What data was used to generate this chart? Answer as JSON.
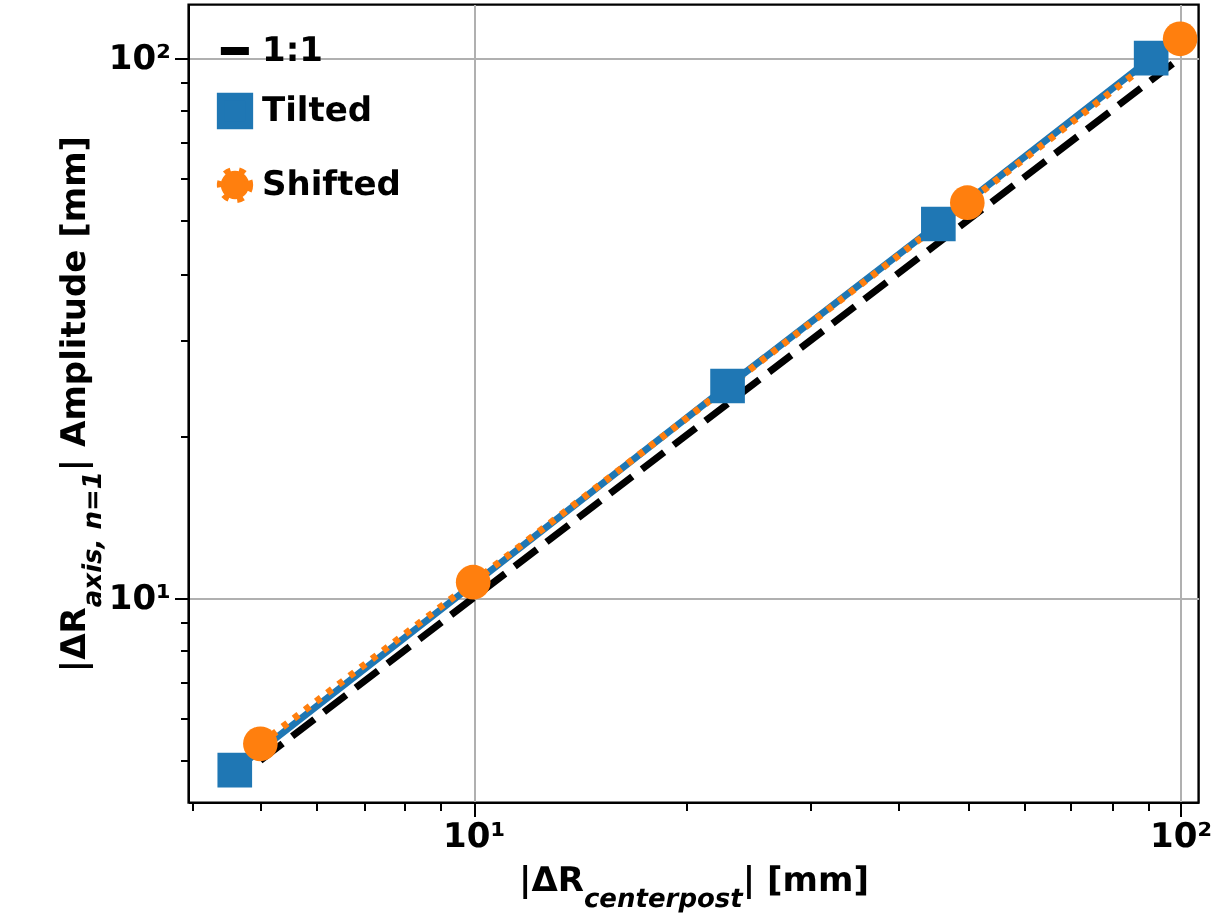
{
  "chart_data": {
    "type": "line",
    "xlabel": "|ΔR$_{centerpost}$| [mm]",
    "ylabel": "|ΔR$_{axis, n=1}$| Amplitude [mm]",
    "log": "xy",
    "grid": true,
    "legend": "top left",
    "xlim": [
      3.95,
      106
    ],
    "ylim": [
      4.19,
      126
    ],
    "xticks": [
      {
        "value": 4,
        "label": null
      },
      {
        "value": 5,
        "label": null
      },
      {
        "value": 6,
        "label": null
      },
      {
        "value": 7,
        "label": null
      },
      {
        "value": 8,
        "label": null
      },
      {
        "value": 9,
        "label": null
      },
      {
        "value": 10,
        "label": "10¹"
      },
      {
        "value": 20,
        "label": null
      },
      {
        "value": 30,
        "label": null
      },
      {
        "value": 40,
        "label": null
      },
      {
        "value": 50,
        "label": null
      },
      {
        "value": 60,
        "label": null
      },
      {
        "value": 70,
        "label": null
      },
      {
        "value": 80,
        "label": null
      },
      {
        "value": 90,
        "label": null
      },
      {
        "value": 100,
        "label": "10²"
      }
    ],
    "yticks": [
      {
        "value": 5,
        "label": null
      },
      {
        "value": 6,
        "label": null
      },
      {
        "value": 7,
        "label": null
      },
      {
        "value": 8,
        "label": null
      },
      {
        "value": 9,
        "label": null
      },
      {
        "value": 10,
        "label": "10¹"
      },
      {
        "value": 20,
        "label": null
      },
      {
        "value": 30,
        "label": null
      },
      {
        "value": 40,
        "label": null
      },
      {
        "value": 50,
        "label": null
      },
      {
        "value": 60,
        "label": null
      },
      {
        "value": 70,
        "label": null
      },
      {
        "value": 80,
        "label": null
      },
      {
        "value": 90,
        "label": null
      },
      {
        "value": 100,
        "label": "10²"
      }
    ],
    "series": [
      {
        "name": "1:1",
        "color": "#000000",
        "line_style": "dashed",
        "marker": "none",
        "x": [
          5,
          100
        ],
        "values": [
          5,
          100
        ]
      },
      {
        "name": "Tilted",
        "color": "#1f77b4",
        "line_style": "solid",
        "marker": "square",
        "x": [
          4.6,
          22.9,
          45.5,
          91
        ],
        "values": [
          4.8,
          24.7,
          49.3,
          100
        ]
      },
      {
        "name": "Shifted",
        "color": "#ff7f0e",
        "line_style": "dotted",
        "marker": "circle",
        "x": [
          5,
          10,
          50,
          100
        ],
        "values": [
          5.37,
          10.7,
          54,
          108.6
        ]
      }
    ]
  }
}
